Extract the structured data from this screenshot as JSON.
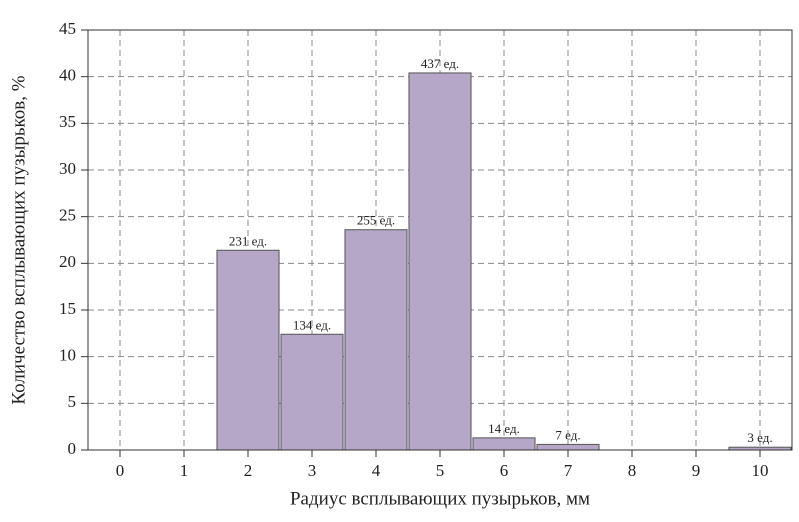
{
  "chart_data": {
    "type": "bar",
    "categories": [
      "0",
      "1",
      "2",
      "3",
      "4",
      "5",
      "6",
      "7",
      "8",
      "9",
      "10"
    ],
    "values": [
      null,
      null,
      21.4,
      12.4,
      23.6,
      40.4,
      1.3,
      0.6,
      null,
      null,
      0.3
    ],
    "bar_labels": [
      null,
      null,
      "231 ед.",
      "134 ед.",
      "255 ед.",
      "437 ед.",
      "14 ед.",
      "7 ед.",
      null,
      null,
      "3 ед."
    ],
    "color": "#b4a7c8",
    "x_label": "Радиус всплывающих пузырьков, мм",
    "y_label": "Количество всплывающих пузырьков, %",
    "ylim": [
      0,
      45
    ],
    "yticks": [
      0,
      5,
      10,
      15,
      20,
      25,
      30,
      35,
      40,
      45
    ],
    "grid": true
  }
}
